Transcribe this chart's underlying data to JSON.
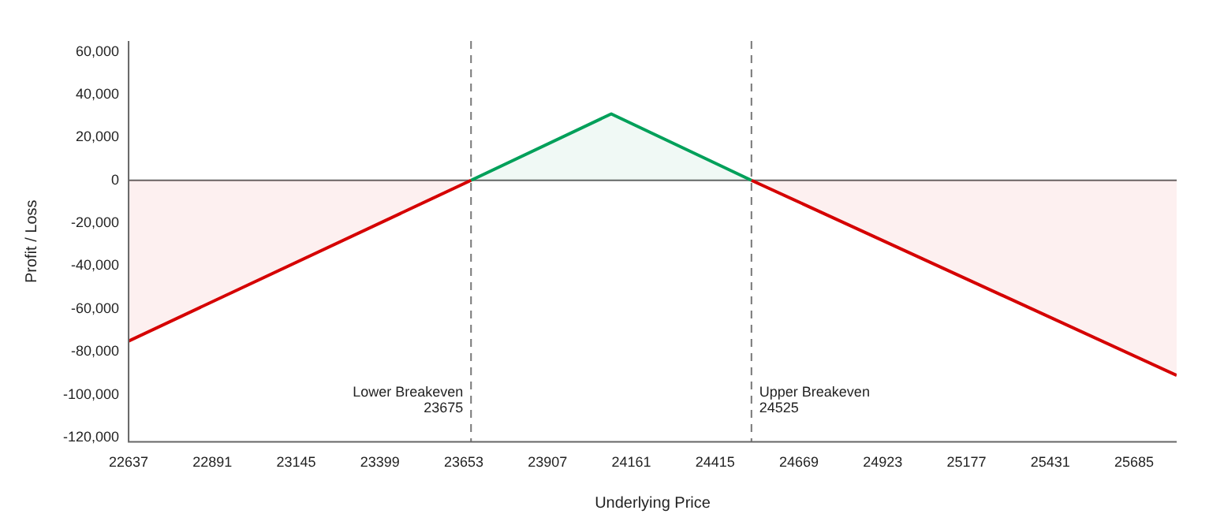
{
  "chart_data": {
    "type": "area",
    "xlabel": "Underlying Price",
    "ylabel": "Profit / Loss",
    "xlim": [
      22637,
      25814
    ],
    "xticks": [
      22637,
      22891,
      23145,
      23399,
      23653,
      23907,
      24161,
      24415,
      24669,
      24923,
      25177,
      25431,
      25685
    ],
    "ylim": [
      -122000,
      65000
    ],
    "yticks": [
      {
        "value": 60000,
        "label": "60,000"
      },
      {
        "value": 40000,
        "label": "40,000"
      },
      {
        "value": 20000,
        "label": "20,000"
      },
      0,
      {
        "value": -20000,
        "label": "-20,000"
      },
      {
        "value": -40000,
        "label": "-40,000"
      },
      {
        "value": -60000,
        "label": "-60,000"
      },
      {
        "value": -80000,
        "label": "-80,000"
      },
      {
        "value": -100000,
        "label": "-100,000"
      },
      {
        "value": -120000,
        "label": "-120,000"
      }
    ],
    "series": [
      {
        "color": "#d50000",
        "x": [
          22637,
          23675
        ],
        "values": [
          -75000,
          0
        ]
      },
      {
        "color": "#00a05a",
        "x": [
          23675,
          24100,
          24525
        ],
        "values": [
          0,
          31000,
          0
        ]
      },
      {
        "color": "#d50000",
        "x": [
          24525,
          25814
        ],
        "values": [
          0,
          -91000
        ]
      }
    ],
    "ref_lines": [
      {
        "axis": "y",
        "value": 0,
        "color": "#666666",
        "line_style": "solid"
      },
      {
        "axis": "x",
        "value": 23675,
        "label": "Lower Breakeven 23675",
        "color": "#777777",
        "line_style": "dashed"
      },
      {
        "axis": "x",
        "value": 24525,
        "label": "Upper Breakeven 24525",
        "color": "#777777",
        "line_style": "dashed"
      }
    ],
    "grid": false,
    "legend": false,
    "marker": "none",
    "line_style": "solid"
  }
}
